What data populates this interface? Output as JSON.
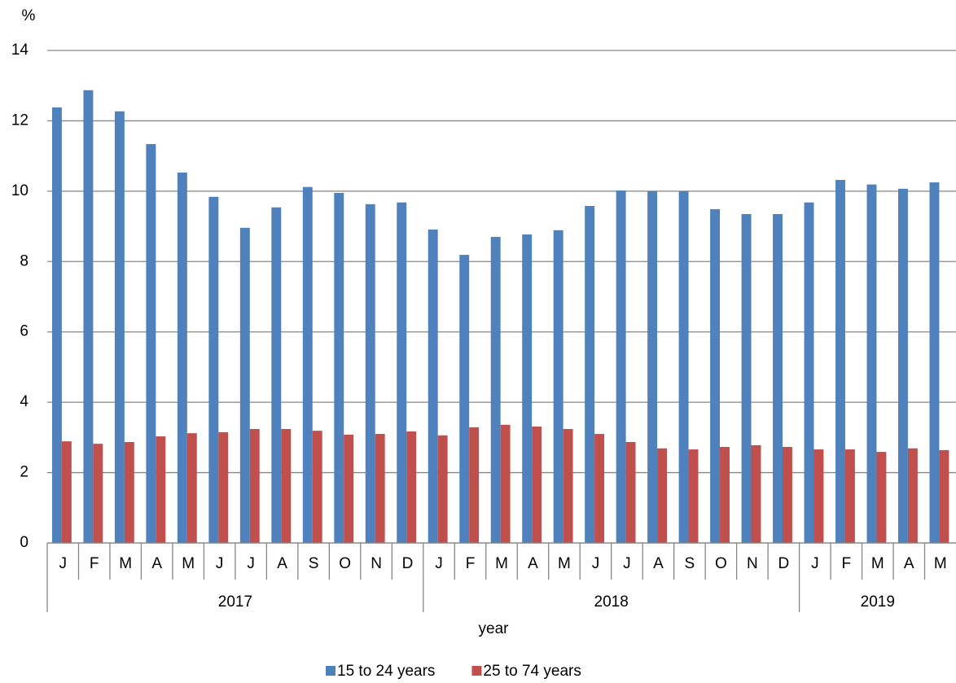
{
  "chart_data": {
    "type": "bar",
    "y_label": "%",
    "x_label": "year",
    "groups": [
      {
        "label": "2017",
        "categories": [
          "J",
          "F",
          "M",
          "A",
          "M",
          "J",
          "J",
          "A",
          "S",
          "O",
          "N",
          "D"
        ]
      },
      {
        "label": "2018",
        "categories": [
          "J",
          "F",
          "M",
          "A",
          "M",
          "J",
          "J",
          "A",
          "S",
          "O",
          "N",
          "D"
        ]
      },
      {
        "label": "2019",
        "categories": [
          "J",
          "F",
          "M",
          "A",
          "M"
        ]
      }
    ],
    "series": [
      {
        "name": "15 to 24 years",
        "color": "#4f81bd",
        "values": [
          12.38,
          12.87,
          12.27,
          11.34,
          10.53,
          9.84,
          8.96,
          9.54,
          10.12,
          9.95,
          9.63,
          9.68,
          8.91,
          8.19,
          8.7,
          8.77,
          8.89,
          9.58,
          10.02,
          10.0,
          10.0,
          9.49,
          9.35,
          9.35,
          9.68,
          10.32,
          10.19,
          10.07,
          10.25
        ]
      },
      {
        "name": "25 to 74 years",
        "color": "#c0504d",
        "values": [
          2.89,
          2.82,
          2.87,
          3.03,
          3.12,
          3.15,
          3.24,
          3.24,
          3.19,
          3.08,
          3.1,
          3.17,
          3.06,
          3.29,
          3.36,
          3.31,
          3.24,
          3.1,
          2.87,
          2.69,
          2.66,
          2.73,
          2.78,
          2.73,
          2.66,
          2.66,
          2.59,
          2.69,
          2.64
        ]
      }
    ],
    "ylim": [
      0,
      14
    ],
    "yticks": [
      0,
      2,
      4,
      6,
      8,
      10,
      12,
      14
    ],
    "grid": true
  }
}
